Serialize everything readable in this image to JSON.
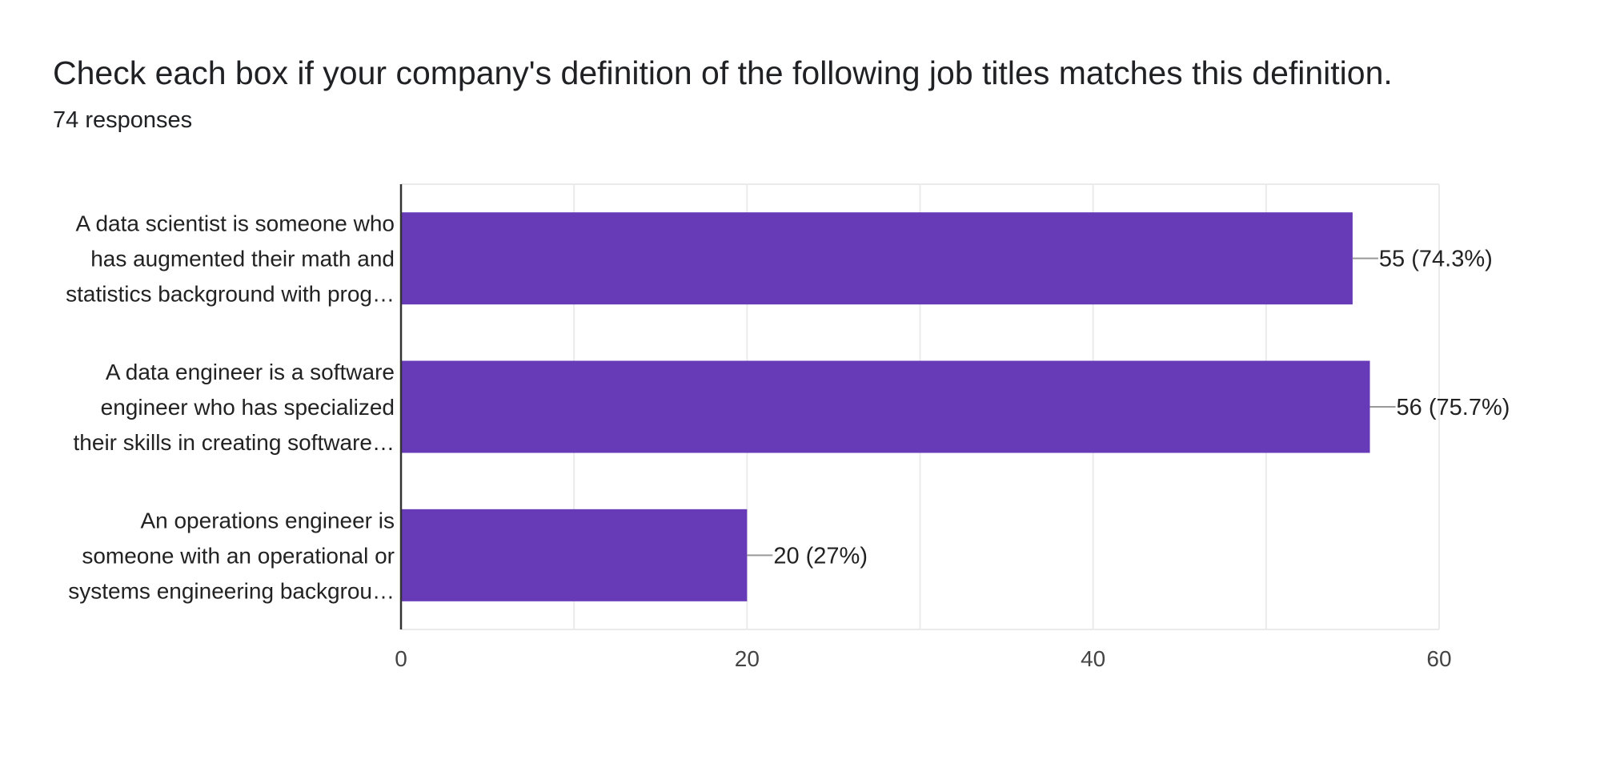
{
  "title": "Check each box if your company's definition of the following job titles matches this definition.",
  "subtitle": "74 responses",
  "colors": {
    "bar": "#673ab7",
    "grid": "#ebebeb",
    "axis": "#333333",
    "leader": "#999999"
  },
  "chart_data": {
    "type": "bar",
    "orientation": "horizontal",
    "categories": [
      [
        "A data scientist is someone who",
        "has augmented their math and",
        "statistics background with prog…"
      ],
      [
        "A data engineer is a software",
        "engineer who has specialized",
        "their skills in creating software…"
      ],
      [
        "An operations engineer is",
        "someone with an operational or",
        "systems engineering backgrou…"
      ]
    ],
    "values": [
      55,
      56,
      20
    ],
    "data_labels": [
      "55 (74.3%)",
      "56 (75.7%)",
      "20 (27%)"
    ],
    "xlim": [
      0,
      60
    ],
    "xticks": [
      0,
      20,
      40,
      60
    ],
    "grid": true,
    "legend": "none"
  }
}
